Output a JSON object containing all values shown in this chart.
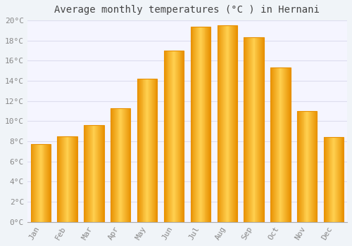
{
  "title": "Average monthly temperatures (°C ) in Hernani",
  "months": [
    "Jan",
    "Feb",
    "Mar",
    "Apr",
    "May",
    "Jun",
    "Jul",
    "Aug",
    "Sep",
    "Oct",
    "Nov",
    "Dec"
  ],
  "values": [
    7.7,
    8.5,
    9.6,
    11.3,
    14.2,
    17.0,
    19.4,
    19.5,
    18.3,
    15.3,
    11.0,
    8.4
  ],
  "bar_color_center": "#FFD050",
  "bar_color_edge": "#E89000",
  "background_color": "#F0F4F8",
  "plot_bg_color": "#F5F5FF",
  "grid_color": "#DDDDEE",
  "tick_label_color": "#888888",
  "title_color": "#444444",
  "ylim": [
    0,
    20
  ],
  "ytick_step": 2,
  "title_fontsize": 10,
  "tick_fontsize": 8
}
